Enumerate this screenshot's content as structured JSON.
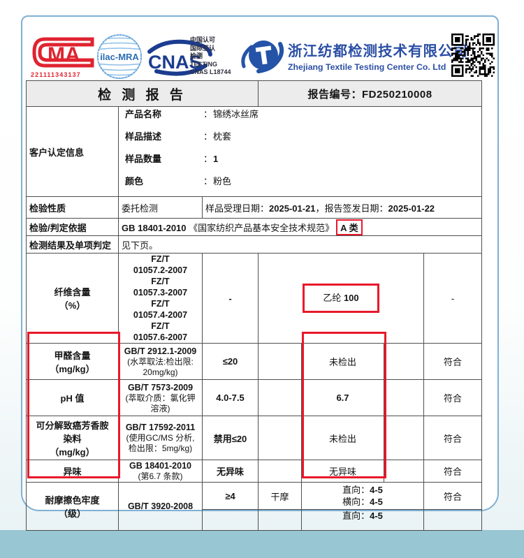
{
  "colors": {
    "accent_red": "#e8192b",
    "brand_blue": "#2b4fa5",
    "cma_red": "#e02330",
    "cnas_navy": "#1b3c8f",
    "ilac_blue": "#4e8fce",
    "footer_teal": "#98c6d2",
    "card_border_blue": "#7fb0d4",
    "title_row_gray": "#ececec"
  },
  "header": {
    "cma": {
      "letters": "MA",
      "number": "221111343137"
    },
    "ilac_label": "ilac-MRA",
    "cnas_label": "CNAS",
    "accreditation_lines": {
      "l1": "中国认可",
      "l2": "国际互认",
      "l3": "检测",
      "l4": "TESTING",
      "l5": "CNAS L18744"
    },
    "company_cn": "浙江纺都检测技术有限公司",
    "company_en": "Zhejiang Textile Testing Center Co. Ltd"
  },
  "title_row": {
    "title": "检 测 报 告",
    "report_no": "报告编号：FD250210008"
  },
  "info": {
    "customer_label": "客户认定信息",
    "colon": "：",
    "fields": [
      {
        "label": "产品名称",
        "value": "锦绣冰丝席"
      },
      {
        "label": "样品描述",
        "value": "枕套"
      },
      {
        "label": "样品数量",
        "value": "1"
      },
      {
        "label": "颜色",
        "value": "粉色"
      }
    ],
    "nature_label": "检验性质",
    "nature_value": "委托检测",
    "date_label1": "样品受理日期：",
    "date1": "2025-01-21",
    "date_label2": "，报告签发日期：",
    "date2": "2025-01-22",
    "basis_label": "检验/判定依据",
    "basis_code": "GB 18401-2010",
    "basis_name": " 《国家纺织产品基本安全技术规范》",
    "basis_class": "A 类",
    "note_label": "检测结果及单项判定",
    "note_value": "见下页。"
  },
  "results": {
    "fiber": {
      "item": "纤维含量\n（%）",
      "methods": "FZ/T\n01057.2-2007\nFZ/T\n01057.3-2007\nFZ/T\n01057.4-2007\nFZ/T\n01057.6-2007",
      "limit": "-",
      "result_text": "乙纶 ",
      "result_num": "100",
      "conclusion": "-"
    },
    "rows": [
      {
        "item": "甲醛含量\n（mg/kg）",
        "method_code": "GB/T 2912.1-2009",
        "method_note": "(水萃取法:检出限:\n20mg/kg)",
        "limit": "≤20",
        "result": "未检出",
        "conclusion": "符合"
      },
      {
        "item": "pH 值",
        "method_code": "GB/T 7573-2009",
        "method_note": "(萃取介质：氯化钾\n溶液)",
        "limit": "4.0-7.5",
        "result": "6.7",
        "conclusion": "符合"
      },
      {
        "item": "可分解致癌芳香胺\n染料\n（mg/kg）",
        "method_code": "GB/T 17592-2011",
        "method_note": "(使用GC/MS 分析,\n检出限：5mg/kg)",
        "limit": "禁用≤20",
        "result": "未检出",
        "conclusion": "符合"
      },
      {
        "item": "异味",
        "method_code": "GB 18401-2010",
        "method_note": "(第6.7 条款)",
        "limit": "无异味",
        "result": "无异味",
        "conclusion": "符合"
      }
    ],
    "rub": {
      "item": "耐摩擦色牢度\n（级）",
      "method": "GB/T 3920-2008",
      "limit": "≥4",
      "sub": "干摩",
      "dir_label": "直向：",
      "dir_val": "4-5",
      "cross_label": "横向：",
      "cross_val": "4-5",
      "conclusion": "符合",
      "partial_dir_label": "直向：",
      "partial_dir_val": "4-5"
    }
  }
}
